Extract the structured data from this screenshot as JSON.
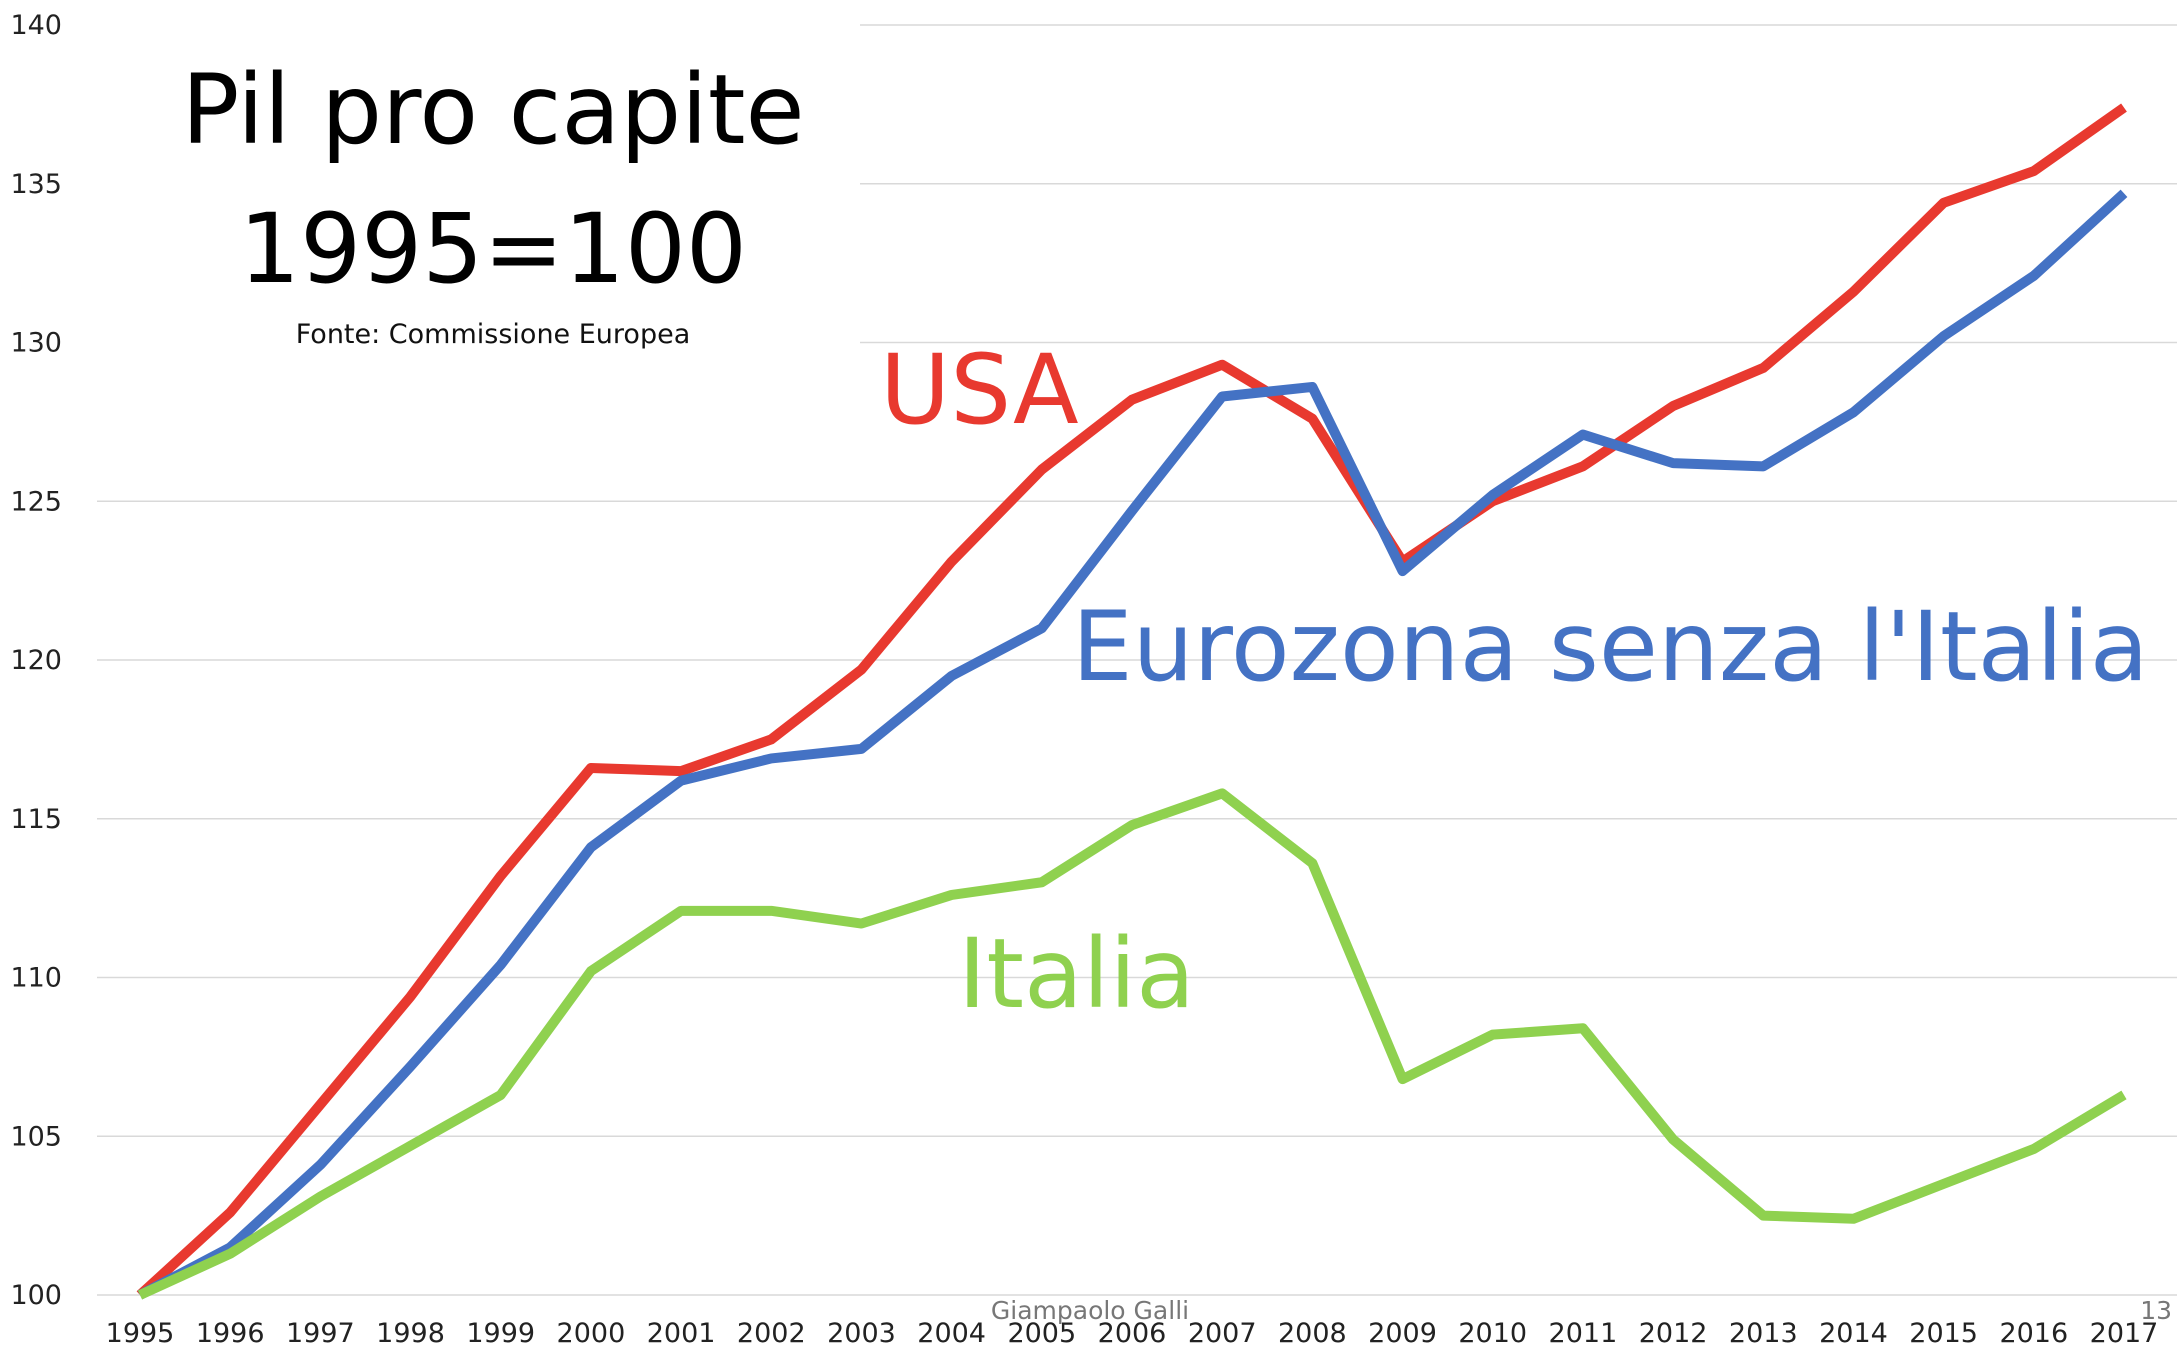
{
  "chart_data": {
    "type": "line",
    "title": "Pil pro capite",
    "subtitle": "1995=100",
    "source": "Fonte: Commissione Europea",
    "footer": "Giampaolo Galli",
    "page_number": "13",
    "categories": [
      "1995",
      "1996",
      "1997",
      "1998",
      "1999",
      "2000",
      "2001",
      "2002",
      "2003",
      "2004",
      "2005",
      "2006",
      "2007",
      "2008",
      "2009",
      "2010",
      "2011",
      "2012",
      "2013",
      "2014",
      "2015",
      "2016",
      "2017"
    ],
    "series": [
      {
        "name": "USA",
        "color": "#e8392f",
        "values": [
          100,
          102.6,
          106.0,
          109.4,
          113.2,
          116.6,
          116.5,
          117.5,
          119.7,
          123.1,
          126.0,
          128.2,
          129.3,
          127.6,
          123.1,
          125.0,
          126.1,
          128.0,
          129.2,
          131.6,
          134.4,
          135.4,
          137.4
        ]
      },
      {
        "name": "Eurozona senza l'Italia",
        "color": "#4472c4",
        "values": [
          100,
          101.5,
          104.1,
          107.2,
          110.4,
          114.1,
          116.2,
          116.9,
          117.2,
          119.5,
          121.0,
          124.7,
          128.3,
          128.6,
          122.8,
          125.2,
          127.1,
          126.2,
          126.1,
          127.8,
          130.2,
          132.1,
          134.7
        ]
      },
      {
        "name": "Italia",
        "color": "#8fd14f",
        "values": [
          100,
          101.3,
          103.1,
          104.7,
          106.3,
          110.2,
          112.1,
          112.1,
          111.7,
          112.6,
          113.0,
          114.8,
          115.8,
          113.6,
          106.8,
          108.2,
          108.4,
          104.9,
          102.5,
          102.4,
          103.5,
          104.6,
          106.3
        ]
      }
    ],
    "ylim": [
      100,
      140
    ],
    "yticks": [
      100,
      105,
      110,
      115,
      120,
      125,
      130,
      135,
      140
    ],
    "grid": true
  }
}
